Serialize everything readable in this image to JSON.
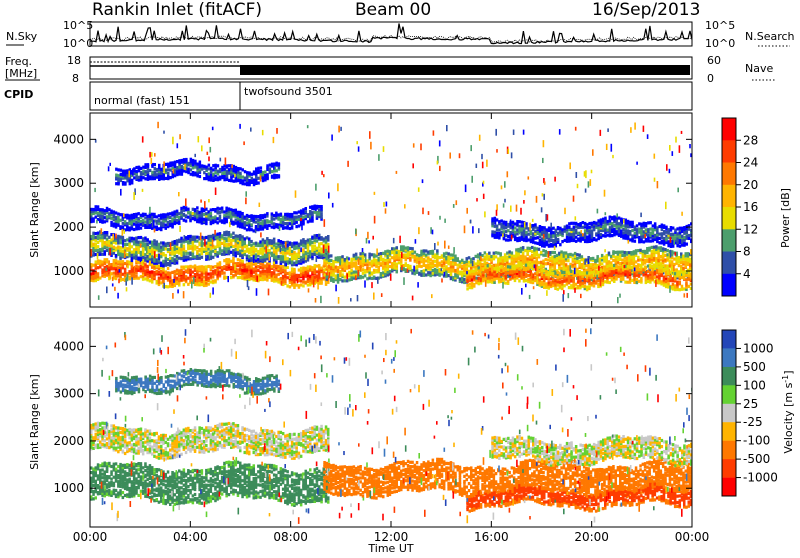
{
  "header": {
    "station": "Rankin Inlet (fitACF)",
    "beam": "Beam 00",
    "date": "16/Sep/2013"
  },
  "summary_panels": {
    "nsky_label": "N.Sky",
    "nsearch_label": "N.Search",
    "freq_label_1": "Freq.",
    "freq_label_2": "[MHz]",
    "nave_label": "Nave",
    "cpid_label": "CPID",
    "nsky_ticks": [
      "10^5",
      "10^0"
    ],
    "nsearch_ticks": [
      "10^5",
      "10^0"
    ],
    "freq_ticks": [
      "18",
      "8"
    ],
    "nave_ticks": [
      "60",
      "0"
    ],
    "cpid_segments": [
      {
        "label": "normal (fast) 151",
        "start_hour": 0,
        "end_hour": 6
      },
      {
        "label": "twofsound 3501",
        "start_hour": 6,
        "end_hour": 24
      }
    ]
  },
  "power_colorbar": {
    "title": "Power [dB]",
    "ticks": [
      "28",
      "24",
      "20",
      "16",
      "12",
      "8",
      "4"
    ],
    "colors": [
      "#ff0000",
      "#ff3c00",
      "#ff7800",
      "#ffb400",
      "#e8dc00",
      "#4c9e6c",
      "#2f4fa8",
      "#0000ff"
    ]
  },
  "velocity_colorbar": {
    "title": "Velocity [m s",
    "title_sup": "-1",
    "title_end": "]",
    "ticks": [
      "1000",
      "500",
      "100",
      "25",
      "-25",
      "-100",
      "-500",
      "-1000"
    ],
    "colors": [
      "#2346b8",
      "#3c78c0",
      "#3c8c5a",
      "#64d232",
      "#c8c8c8",
      "#ffb400",
      "#ff7800",
      "#ff3c00",
      "#ff0000"
    ]
  },
  "chart_data": [
    {
      "type": "heatmap",
      "title": "Power",
      "ylabel": "Slant Range [km]",
      "xlabel": "Time UT",
      "xlim": [
        0,
        24
      ],
      "ylim": [
        180,
        4600
      ],
      "yticks": [
        1000,
        2000,
        3000,
        4000
      ],
      "xticks": [
        "00:00",
        "04:00",
        "08:00",
        "12:00",
        "16:00",
        "20:00",
        "00:00"
      ],
      "bands": [
        {
          "from_h": 0,
          "to_h": 9.5,
          "center_km": 950,
          "half_width_km": 210,
          "value_db": 28
        },
        {
          "from_h": 0,
          "to_h": 9.5,
          "center_km": 1500,
          "half_width_km": 250,
          "value_db": 16
        },
        {
          "from_h": 0,
          "to_h": 9.2,
          "center_km": 2200,
          "half_width_km": 170,
          "value_db": 10
        },
        {
          "from_h": 1,
          "to_h": 7.5,
          "center_km": 3250,
          "half_width_km": 160,
          "value_db": 9
        },
        {
          "from_h": 9.3,
          "to_h": 24,
          "center_km": 1150,
          "half_width_km": 280,
          "value_db": 20
        },
        {
          "from_h": 15,
          "to_h": 24,
          "center_km": 850,
          "half_width_km": 180,
          "value_db": 26
        },
        {
          "from_h": 16,
          "to_h": 24,
          "center_km": 1900,
          "half_width_km": 220,
          "value_db": 10
        }
      ]
    },
    {
      "type": "heatmap",
      "title": "Velocity",
      "ylabel": "Slant Range [km]",
      "xlabel": "Time UT",
      "xlim": [
        0,
        24
      ],
      "ylim": [
        180,
        4600
      ],
      "yticks": [
        1000,
        2000,
        3000,
        4000
      ],
      "xticks": [
        "00:00",
        "04:00",
        "08:00",
        "12:00",
        "16:00",
        "20:00",
        "00:00"
      ],
      "bands": [
        {
          "from_h": 0,
          "to_h": 9.5,
          "center_km": 1100,
          "half_width_km": 350,
          "value_ms": 200
        },
        {
          "from_h": 0,
          "to_h": 9.5,
          "center_km": 2000,
          "half_width_km": 260,
          "value_ms": 0
        },
        {
          "from_h": 1,
          "to_h": 7.5,
          "center_km": 3250,
          "half_width_km": 160,
          "value_ms": 700
        },
        {
          "from_h": 9.3,
          "to_h": 24,
          "center_km": 1200,
          "half_width_km": 300,
          "value_ms": -300
        },
        {
          "from_h": 15,
          "to_h": 24,
          "center_km": 800,
          "half_width_km": 170,
          "value_ms": -700
        },
        {
          "from_h": 16,
          "to_h": 24,
          "center_km": 1800,
          "half_width_km": 220,
          "value_ms": 0
        }
      ]
    }
  ]
}
